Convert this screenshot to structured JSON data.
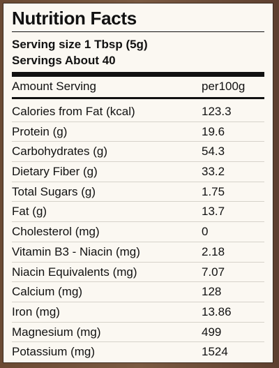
{
  "label": {
    "title": "Nutrition Facts",
    "serving_size": "Serving size 1 Tbsp (5g)",
    "servings": "Servings About 40",
    "header_left": "Amount Serving",
    "header_right": "per100g",
    "rows": [
      {
        "name": "Calories from Fat (kcal)",
        "value": "123.3"
      },
      {
        "name": "Protein (g)",
        "value": "19.6"
      },
      {
        "name": "Carbohydrates (g)",
        "value": "54.3"
      },
      {
        "name": "Dietary Fiber (g)",
        "value": "33.2"
      },
      {
        "name": "Total Sugars (g)",
        "value": "1.75"
      },
      {
        "name": "Fat (g)",
        "value": "13.7"
      },
      {
        "name": "Cholesterol (mg)",
        "value": "0"
      },
      {
        "name": "Vitamin B3 - Niacin (mg)",
        "value": "2.18"
      },
      {
        "name": "Niacin Equivalents (mg)",
        "value": "7.07"
      },
      {
        "name": "Calcium (mg)",
        "value": "128"
      },
      {
        "name": "Iron (mg)",
        "value": "13.86"
      },
      {
        "name": "Magnesium (mg)",
        "value": "499"
      },
      {
        "name": "Potassium (mg)",
        "value": "1524"
      }
    ]
  }
}
